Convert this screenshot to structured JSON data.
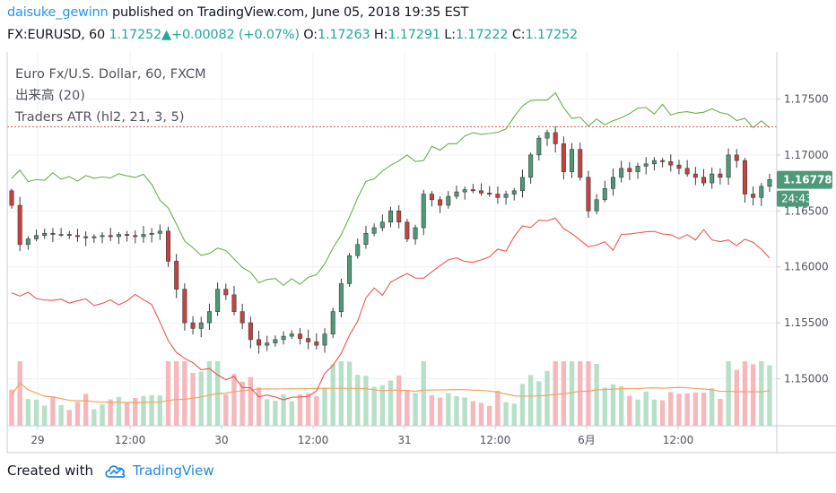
{
  "header": {
    "author": "daisuke_gewinn",
    "published_text": "published on TradingView.com, June 05, 2018 19:35 EST",
    "symbol": "FX:EURUSD, 60",
    "last": "1.17252",
    "change_arrow": "▲",
    "change": "+0.00082 (+0.07%)",
    "o_label": "O:",
    "o_val": "1.17263",
    "h_label": "H:",
    "h_val": "1.17291",
    "l_label": "L:",
    "l_val": "1.17222",
    "c_label": "C:",
    "c_val": "1.17252"
  },
  "legend": {
    "line1": "Euro Fx/U.S. Dollar, 60, FXCM",
    "line2": "出来高 (20)",
    "line3": "Traders ATR (hl2, 21, 3, 5)"
  },
  "price_badge": {
    "value": "1.16778",
    "countdown": "24:43"
  },
  "footer": {
    "created": "Created with",
    "brand": "TradingView"
  },
  "colors": {
    "up": "#4e9a78",
    "down": "#c9403f",
    "upper_band": "#6ab04c",
    "lower_band": "#ef5350",
    "volume_up": "#b7e0c8",
    "volume_down": "#f4b8bd",
    "volume_ma": "#f4a460",
    "ref_line": "#d9534f",
    "badge": "#4e9a78"
  },
  "chart_data": {
    "type": "candlestick",
    "y_ticks": [
      "1.17500",
      "1.17000",
      "1.16500",
      "1.16000",
      "1.15500",
      "1.15000"
    ],
    "x_ticks": [
      "29",
      "12:00",
      "30",
      "12:00",
      "31",
      "12:00",
      "6月",
      "12:00"
    ],
    "ylim": [
      1.1458,
      1.1792
    ],
    "reference_line": 1.17252,
    "close": [
      1.1655,
      1.162,
      1.1625,
      1.1628,
      1.163,
      1.1629,
      1.1629,
      1.1628,
      1.1627,
      1.1626,
      1.1627,
      1.1628,
      1.1627,
      1.1629,
      1.1628,
      1.1627,
      1.1629,
      1.163,
      1.1632,
      1.1605,
      1.158,
      1.155,
      1.1545,
      1.155,
      1.156,
      1.158,
      1.1575,
      1.156,
      1.155,
      1.1535,
      1.153,
      1.1532,
      1.1535,
      1.1538,
      1.154,
      1.1536,
      1.1533,
      1.153,
      1.154,
      1.156,
      1.1585,
      1.161,
      1.162,
      1.163,
      1.1635,
      1.164,
      1.165,
      1.164,
      1.1625,
      1.1635,
      1.1665,
      1.166,
      1.1655,
      1.1663,
      1.1667,
      1.1669,
      1.1668,
      1.1666,
      1.1665,
      1.1662,
      1.1665,
      1.1668,
      1.168,
      1.17,
      1.1715,
      1.172,
      1.171,
      1.1685,
      1.1705,
      1.168,
      1.165,
      1.166,
      1.167,
      1.168,
      1.1688,
      1.1685,
      1.169,
      1.1692,
      1.1695,
      1.1694,
      1.1691,
      1.1688,
      1.1683,
      1.168,
      1.1675,
      1.1683,
      1.168,
      1.17,
      1.1695,
      1.1665,
      1.1662,
      1.1672,
      1.1678
    ],
    "volume_ma_range": [
      1.1462,
      1.1478
    ],
    "upper_band_range": [
      1.16,
      1.1768
    ],
    "lower_band_range": [
      1.1478,
      1.166
    ]
  }
}
